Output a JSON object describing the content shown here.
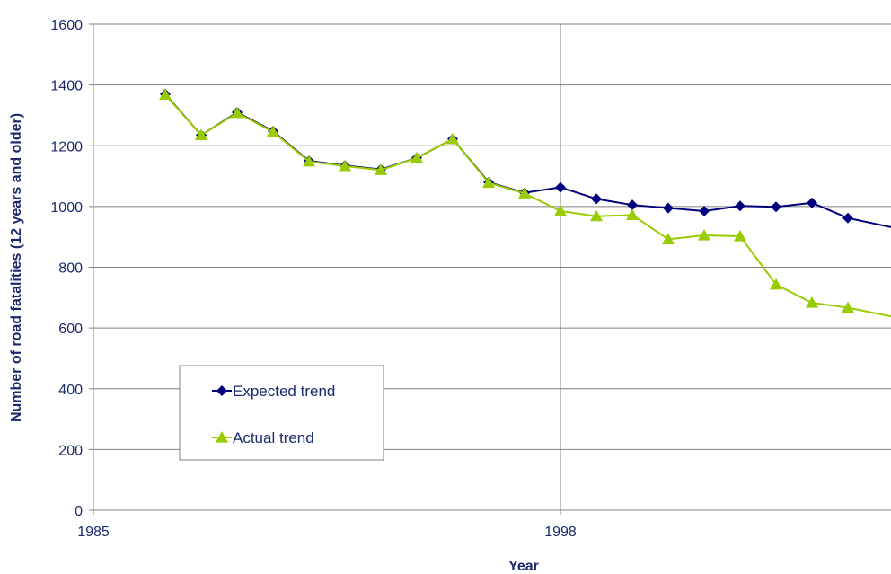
{
  "chart_data": {
    "type": "line",
    "title": "",
    "xlabel": "Year",
    "ylabel": "Number of road fatalities (12 years and older)",
    "xlim": [
      1985,
      2007.2
    ],
    "ylim": [
      0,
      1600
    ],
    "x_ticks": [
      1985,
      1998
    ],
    "y_ticks": [
      0,
      200,
      400,
      600,
      800,
      1000,
      1200,
      1400,
      1600
    ],
    "grid": {
      "horizontal": true,
      "vertical_at": [
        1998
      ]
    },
    "legend": {
      "placement": "bottom-left"
    },
    "series": [
      {
        "name": "Expected trend",
        "color": "#00007f",
        "marker": "diamond",
        "x": [
          1987,
          1988,
          1989,
          1990,
          1991,
          1992,
          1993,
          1994,
          1995,
          1996,
          1997,
          1998,
          1999,
          2000,
          2001,
          2002,
          2003,
          2004,
          2005,
          2006,
          2007.2
        ],
        "values": [
          1370,
          1235,
          1310,
          1248,
          1150,
          1135,
          1122,
          1160,
          1222,
          1080,
          1045,
          1063,
          1025,
          1005,
          995,
          985,
          1002,
          999,
          1012,
          962,
          932
        ]
      },
      {
        "name": "Actual trend",
        "color": "#99cc00",
        "marker": "triangle",
        "x": [
          1987,
          1988,
          1989,
          1990,
          1991,
          1992,
          1993,
          1994,
          1995,
          1996,
          1997,
          1998,
          1999,
          2000,
          2001,
          2002,
          2003,
          2004,
          2005,
          2006,
          2007.2
        ],
        "values": [
          1368,
          1235,
          1308,
          1246,
          1148,
          1133,
          1120,
          1160,
          1222,
          1078,
          1043,
          985,
          968,
          972,
          892,
          905,
          902,
          743,
          683,
          667,
          638
        ]
      }
    ]
  }
}
